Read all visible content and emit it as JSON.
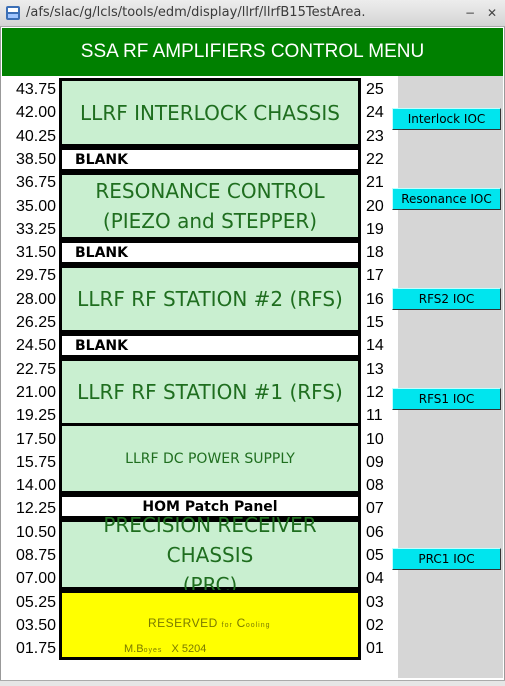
{
  "window": {
    "title": "/afs/slac/g/lcls/tools/edm/display/llrf/llrfB15TestArea.",
    "minimize_label": "−",
    "close_label": "✕"
  },
  "header": {
    "title": "SSA RF AMPLIFIERS CONTROL MENU"
  },
  "left_scale": [
    "43.75",
    "42.00",
    "40.25",
    "38.50",
    "36.75",
    "35.00",
    "33.25",
    "31.50",
    "29.75",
    "28.00",
    "26.25",
    "24.50",
    "22.75",
    "21.00",
    "19.25",
    "17.50",
    "15.75",
    "14.00",
    "12.25",
    "10.50",
    "08.75",
    "07.00",
    "05.25",
    "03.50",
    "01.75"
  ],
  "right_scale": [
    "25",
    "24",
    "23",
    "22",
    "21",
    "20",
    "19",
    "18",
    "17",
    "16",
    "15",
    "14",
    "13",
    "12",
    "11",
    "10",
    "09",
    "08",
    "07",
    "06",
    "05",
    "04",
    "03",
    "02",
    "01"
  ],
  "rack": {
    "interlock": "LLRF INTERLOCK CHASSIS",
    "blank1": "BLANK",
    "resonance_line1": "RESONANCE CONTROL",
    "resonance_line2": "(PIEZO and STEPPER)",
    "blank2": "BLANK",
    "rfs2": "LLRF RF STATION #2 (RFS)",
    "blank3": "BLANK",
    "rfs1": "LLRF RF STATION #1 (RFS)",
    "dc_power": "LLRF DC POWER SUPPLY",
    "hom": "HOM Patch Panel",
    "prc_line1": "PRECISION RECEIVER CHASSIS",
    "prc_line2": "(PRC)",
    "reserved": {
      "word1": "RESERVED",
      "word2": "for",
      "word3": "C",
      "word4": "ooling",
      "contact_a": "M.B",
      "contact_b": "oyes",
      "contact_c": "X 5204"
    }
  },
  "buttons": {
    "interlock_ioc": "Interlock IOC",
    "resonance_ioc": "Resonance IOC",
    "rfs2_ioc": "RFS2 IOC",
    "rfs1_ioc": "RFS1 IOC",
    "prc1_ioc": "PRC1 IOC"
  },
  "colors": {
    "header_bg": "#008000",
    "module_bg": "#c9efd0",
    "module_text": "#1f6e1f",
    "reserved_bg": "#ffff00",
    "button_bg": "#00e5ee"
  }
}
